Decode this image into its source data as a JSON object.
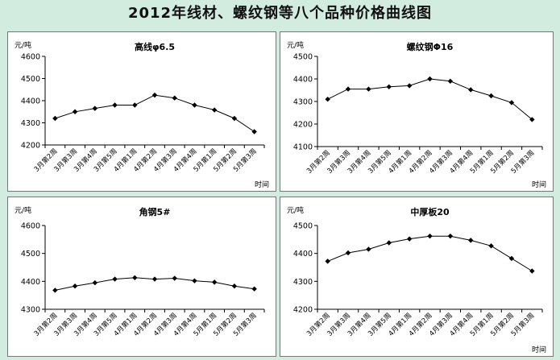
{
  "page": {
    "title": "2012年线材、螺纹钢等八个品种价格曲线图"
  },
  "chart_data": [
    {
      "type": "line",
      "title": "高线φ6.5",
      "ylabel": "元/吨",
      "xlabel": "时间",
      "categories": [
        "3月第2周",
        "3月第3周",
        "3月第4周",
        "3月第5周",
        "4月第1周",
        "4月第2周",
        "4月第3周",
        "4月第4周",
        "5月第1周",
        "5月第2周",
        "5月第3周"
      ],
      "values": [
        4320,
        4350,
        4365,
        4380,
        4380,
        4425,
        4412,
        4380,
        4358,
        4320,
        4260
      ],
      "ylim": [
        4200,
        4600
      ],
      "yticks": [
        4200,
        4300,
        4400,
        4500,
        4600
      ],
      "grid": false,
      "line_color": "#000000"
    },
    {
      "type": "line",
      "title": "螺纹钢Φ16",
      "ylabel": "元/吨",
      "xlabel": "时间",
      "categories": [
        "3月第2周",
        "3月第3周",
        "3月第4周",
        "3月第5周",
        "4月第1周",
        "4月第2周",
        "4月第3周",
        "4月第4周",
        "5月第1周",
        "5月第2周",
        "5月第3周"
      ],
      "values": [
        4310,
        4355,
        4355,
        4365,
        4370,
        4400,
        4390,
        4352,
        4325,
        4295,
        4220
      ],
      "ylim": [
        4100,
        4500
      ],
      "yticks": [
        4100,
        4200,
        4300,
        4400,
        4500
      ],
      "grid": false,
      "line_color": "#000000"
    },
    {
      "type": "line",
      "title": "角钢5#",
      "ylabel": "元/吨",
      "xlabel": "",
      "categories": [
        "3月第2周",
        "3月第3周",
        "3月第4周",
        "3月第5周",
        "4月第1周",
        "4月第2周",
        "4月第3周",
        "4月第4周",
        "5月第1周",
        "5月第2周",
        "5月第3周"
      ],
      "values": [
        4368,
        4383,
        4395,
        4408,
        4413,
        4408,
        4411,
        4402,
        4397,
        4383,
        4373
      ],
      "ylim": [
        4300,
        4600
      ],
      "yticks": [
        4300,
        4400,
        4500,
        4600
      ],
      "grid": false,
      "line_color": "#000000"
    },
    {
      "type": "line",
      "title": "中厚板20",
      "ylabel": "元/吨",
      "xlabel": "时间",
      "categories": [
        "3月第2周",
        "3月第3周",
        "3月第4周",
        "3月第5周",
        "4月第1周",
        "4月第2周",
        "4月第3周",
        "4月第4周",
        "5月第1周",
        "5月第2周",
        "5月第3周"
      ],
      "values": [
        4372,
        4402,
        4415,
        4438,
        4452,
        4462,
        4462,
        4447,
        4427,
        4382,
        4337
      ],
      "ylim": [
        4200,
        4500
      ],
      "yticks": [
        4200,
        4300,
        4400,
        4500
      ],
      "grid": false,
      "line_color": "#000000"
    }
  ]
}
